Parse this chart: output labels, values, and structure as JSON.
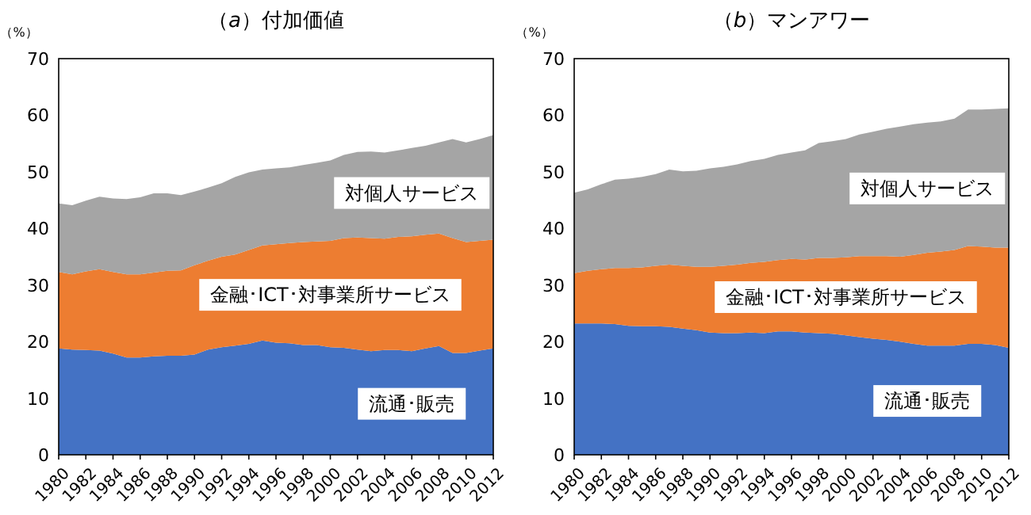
{
  "chart_data": [
    {
      "type": "area",
      "stacked": true,
      "title": "（*a*）付加価値",
      "ylabel": "（%）",
      "x": [
        1980,
        1981,
        1982,
        1983,
        1984,
        1985,
        1986,
        1987,
        1988,
        1989,
        1990,
        1991,
        1992,
        1993,
        1994,
        1995,
        1996,
        1997,
        1998,
        1999,
        2000,
        2001,
        2002,
        2003,
        2004,
        2005,
        2006,
        2007,
        2008,
        2009,
        2010,
        2011,
        2012
      ],
      "xlim": [
        1980,
        2012
      ],
      "xticks": [
        1980,
        1982,
        1984,
        1986,
        1988,
        1990,
        1992,
        1994,
        1996,
        1998,
        2000,
        2002,
        2004,
        2006,
        2008,
        2010,
        2012
      ],
      "ylim": [
        0,
        70
      ],
      "yticks": [
        0,
        10,
        20,
        30,
        40,
        50,
        60,
        70
      ],
      "series": [
        {
          "name": "流通･販売",
          "color": "#4472c4",
          "values": [
            18.8,
            18.6,
            18.5,
            18.4,
            17.9,
            17.2,
            17.2,
            17.4,
            17.5,
            17.5,
            17.7,
            18.6,
            19.0,
            19.3,
            19.6,
            20.2,
            19.8,
            19.7,
            19.4,
            19.4,
            19.0,
            18.9,
            18.6,
            18.3,
            18.5,
            18.5,
            18.3,
            18.8,
            19.2,
            18.0,
            18.0,
            18.4,
            18.8
          ]
        },
        {
          "name": "金融･ICT･対事業所サービス",
          "color": "#ed7d31",
          "values": [
            13.5,
            13.3,
            13.9,
            14.4,
            14.4,
            14.7,
            14.7,
            14.8,
            15.0,
            15.1,
            15.8,
            15.7,
            16.0,
            16.1,
            16.6,
            16.8,
            17.4,
            17.7,
            18.2,
            18.3,
            18.8,
            19.4,
            19.8,
            20.0,
            19.7,
            20.0,
            20.3,
            20.1,
            19.9,
            20.3,
            19.6,
            19.4,
            19.2
          ]
        },
        {
          "name": "対個人サービス",
          "color": "#a5a5a5",
          "values": [
            12.1,
            12.2,
            12.5,
            12.8,
            13.0,
            13.3,
            13.6,
            14.0,
            13.7,
            13.3,
            13.0,
            12.9,
            13.0,
            13.7,
            13.7,
            13.4,
            13.4,
            13.4,
            13.6,
            13.9,
            14.2,
            14.7,
            15.1,
            15.3,
            15.2,
            15.3,
            15.6,
            15.7,
            16.1,
            17.5,
            17.6,
            18.0,
            18.5
          ]
        }
      ]
    },
    {
      "type": "area",
      "stacked": true,
      "title": "（*b*）マンアワー",
      "ylabel": "（%）",
      "x": [
        1980,
        1981,
        1982,
        1983,
        1984,
        1985,
        1986,
        1987,
        1988,
        1989,
        1990,
        1991,
        1992,
        1993,
        1994,
        1995,
        1996,
        1997,
        1998,
        1999,
        2000,
        2001,
        2002,
        2003,
        2004,
        2005,
        2006,
        2007,
        2008,
        2009,
        2010,
        2011,
        2012
      ],
      "xlim": [
        1980,
        2012
      ],
      "xticks": [
        1980,
        1982,
        1984,
        1986,
        1988,
        1990,
        1992,
        1994,
        1996,
        1998,
        2000,
        2002,
        2004,
        2006,
        2008,
        2010,
        2012
      ],
      "ylim": [
        0,
        70
      ],
      "yticks": [
        0,
        10,
        20,
        30,
        40,
        50,
        60,
        70
      ],
      "series": [
        {
          "name": "流通･販売",
          "color": "#4472c4",
          "values": [
            23.2,
            23.2,
            23.2,
            23.1,
            22.8,
            22.7,
            22.7,
            22.6,
            22.3,
            22.0,
            21.6,
            21.5,
            21.5,
            21.6,
            21.5,
            21.8,
            21.8,
            21.6,
            21.5,
            21.4,
            21.1,
            20.8,
            20.5,
            20.3,
            20.0,
            19.6,
            19.3,
            19.3,
            19.3,
            19.6,
            19.6,
            19.4,
            18.9
          ]
        },
        {
          "name": "金融･ICT･対事業所サービス",
          "color": "#ed7d31",
          "values": [
            8.9,
            9.3,
            9.6,
            9.9,
            10.2,
            10.4,
            10.7,
            11.0,
            11.1,
            11.2,
            11.6,
            11.9,
            12.1,
            12.3,
            12.6,
            12.6,
            12.8,
            12.9,
            13.3,
            13.4,
            13.8,
            14.3,
            14.6,
            14.8,
            15.0,
            15.7,
            16.4,
            16.6,
            16.9,
            17.3,
            17.2,
            17.2,
            17.7
          ]
        },
        {
          "name": "対個人サービス",
          "color": "#a5a5a5",
          "values": [
            14.2,
            14.4,
            15.0,
            15.6,
            15.8,
            16.0,
            16.2,
            16.8,
            16.7,
            17.0,
            17.4,
            17.5,
            17.7,
            18.0,
            18.2,
            18.6,
            18.8,
            19.3,
            20.3,
            20.6,
            20.9,
            21.5,
            22.0,
            22.5,
            23.0,
            23.1,
            23.0,
            23.0,
            23.2,
            24.1,
            24.2,
            24.5,
            24.6
          ]
        }
      ]
    }
  ]
}
